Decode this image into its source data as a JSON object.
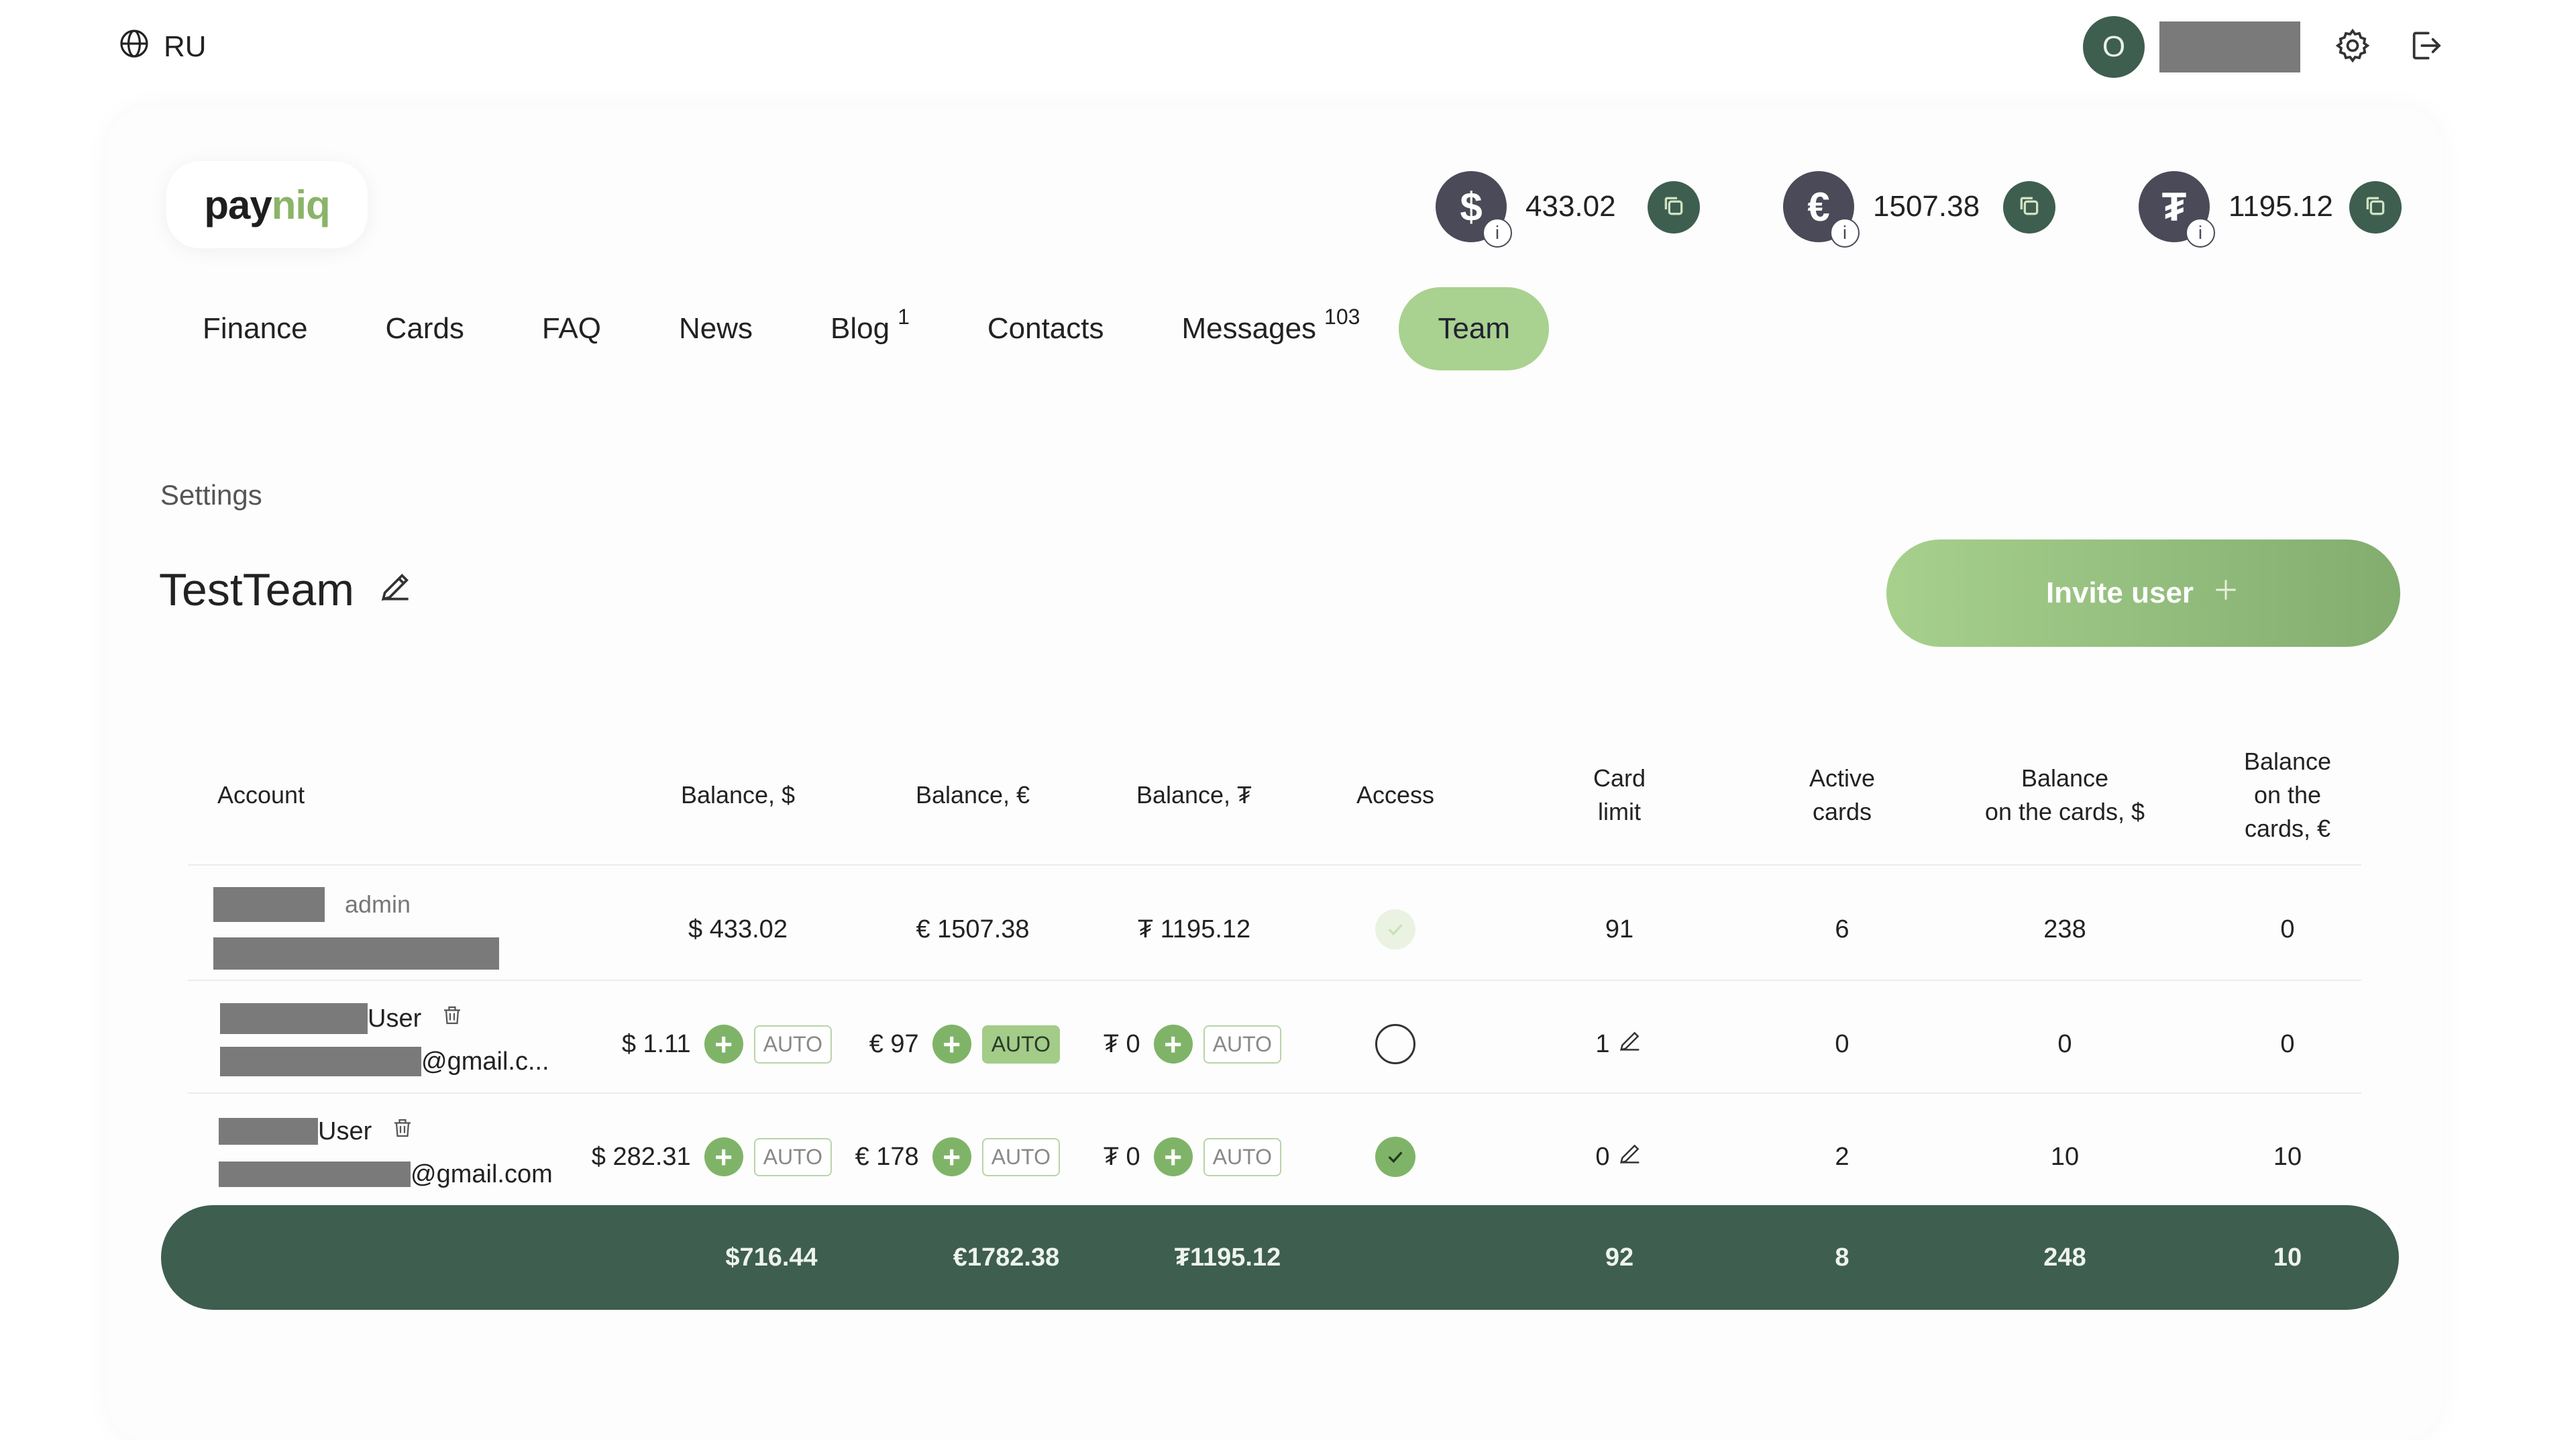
{
  "header": {
    "language": "RU",
    "user_initial": "O"
  },
  "logo": {
    "part1": "pay",
    "part2": "niq"
  },
  "balances": [
    {
      "symbol": "$",
      "value": "433.02",
      "info": "i"
    },
    {
      "symbol": "€",
      "value": "1507.38",
      "info": "i"
    },
    {
      "symbol": "₮",
      "value": "1195.12",
      "info": "i"
    }
  ],
  "nav": [
    {
      "label": "Finance"
    },
    {
      "label": "Cards"
    },
    {
      "label": "FAQ"
    },
    {
      "label": "News"
    },
    {
      "label": "Blog",
      "badge": "1"
    },
    {
      "label": "Contacts"
    },
    {
      "label": "Messages",
      "badge": "103"
    },
    {
      "label": "Team",
      "active": true
    }
  ],
  "page": {
    "section_label": "Settings",
    "team_name": "TestTeam",
    "invite_label": "Invite user"
  },
  "table": {
    "headers": {
      "account": "Account",
      "bal_usd": "Balance, $",
      "bal_eur": "Balance, €",
      "bal_usdt": "Balance, ₮",
      "access": "Access",
      "card_limit_1": "Card",
      "card_limit_2": "limit",
      "active_1": "Active",
      "active_2": "cards",
      "bcu_1": "Balance",
      "bcu_2": "on the cards, $",
      "bce_1": "Balance",
      "bce_2": "on the",
      "bce_3": "cards, €"
    },
    "rows": [
      {
        "role": "admin",
        "bal_usd": "$ 433.02",
        "bal_eur": "€ 1507.38",
        "bal_usdt": "₮ 1195.12",
        "access": "faded",
        "card_limit": "91",
        "active_cards": "6",
        "bal_cards_usd": "238",
        "bal_cards_eur": "0"
      },
      {
        "name_suffix": "User",
        "email_suffix": "@gmail.c...",
        "bal_usd": "$ 1.11",
        "bal_eur": "€ 97",
        "bal_usdt": "₮ 0",
        "auto_usd": "AUTO",
        "auto_usd_on": false,
        "auto_eur": "AUTO",
        "auto_eur_on": true,
        "auto_usdt": "AUTO",
        "auto_usdt_on": false,
        "access": "empty",
        "card_limit": "1",
        "active_cards": "0",
        "bal_cards_usd": "0",
        "bal_cards_eur": "0"
      },
      {
        "name_suffix": "User",
        "email_suffix": "@gmail.com",
        "bal_usd": "$ 282.31",
        "bal_eur": "€ 178",
        "bal_usdt": "₮ 0",
        "auto_usd": "AUTO",
        "auto_usd_on": false,
        "auto_eur": "AUTO",
        "auto_eur_on": false,
        "auto_usdt": "AUTO",
        "auto_usdt_on": false,
        "access": "checked",
        "card_limit": "0",
        "active_cards": "2",
        "bal_cards_usd": "10",
        "bal_cards_eur": "10"
      }
    ],
    "totals": {
      "bal_usd": "$716.44",
      "bal_eur": "€1782.38",
      "bal_usdt": "₮1195.12",
      "card_limit": "92",
      "active_cards": "8",
      "bal_cards_usd": "248",
      "bal_cards_eur": "10"
    }
  },
  "colors": {
    "primary_dark": "#3e5e50",
    "accent_green": "#a9d18f",
    "button_green": "#7fb468",
    "currency_badge": "#4a4a58"
  }
}
